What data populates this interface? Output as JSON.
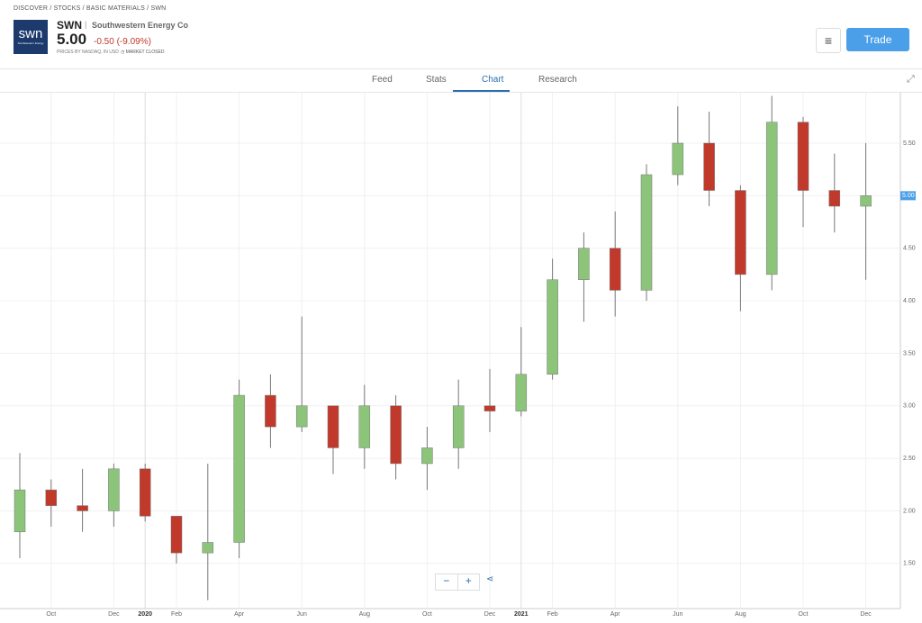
{
  "header": {
    "breadcrumbs": [
      "DISCOVER",
      "STOCKS",
      "BASIC MATERIALS",
      "SWN"
    ],
    "logo": "swn",
    "logo_sub": "Southwestern Energy",
    "ticker": "SWN",
    "company": "Southwestern Energy Co",
    "price": "5.00",
    "change": "-0.50 (-9.09%)",
    "source": "PRICES BY NASDAQ, IN USD",
    "status": "MARKET CLOSED",
    "trade_button": "Trade"
  },
  "tabs": [
    "Feed",
    "Stats",
    "Chart",
    "Research"
  ],
  "active_tab": 2,
  "chart_data": {
    "type": "candlestick",
    "categories": [
      null,
      "Oct",
      null,
      "Dec",
      "2020",
      "Feb",
      null,
      "Apr",
      null,
      "Jun",
      null,
      "Aug",
      null,
      "Oct",
      null,
      "Dec",
      "2021",
      "Feb",
      null,
      "Apr",
      null,
      "Jun",
      null,
      "Aug",
      null,
      "Oct",
      null,
      "Dec"
    ],
    "open": [
      1.8,
      2.2,
      2.05,
      2.0,
      2.4,
      1.95,
      1.6,
      1.7,
      3.1,
      2.8,
      3.0,
      2.6,
      3.0,
      2.45,
      2.6,
      3.0,
      2.95,
      3.3,
      4.2,
      4.5,
      4.1,
      5.2,
      5.5,
      5.05,
      4.25,
      5.7,
      5.05,
      4.9
    ],
    "high": [
      2.55,
      2.3,
      2.4,
      2.45,
      2.45,
      1.95,
      2.45,
      3.25,
      3.3,
      3.85,
      3.0,
      3.2,
      3.1,
      2.8,
      3.25,
      3.35,
      3.75,
      4.4,
      4.65,
      4.85,
      5.3,
      5.85,
      5.8,
      5.1,
      5.95,
      5.75,
      5.4,
      5.5
    ],
    "low": [
      1.55,
      1.85,
      1.8,
      1.85,
      1.9,
      1.5,
      1.15,
      1.55,
      2.6,
      2.75,
      2.35,
      2.4,
      2.3,
      2.2,
      2.4,
      2.75,
      2.9,
      3.25,
      3.8,
      3.85,
      4.0,
      5.1,
      4.9,
      3.9,
      4.1,
      4.7,
      4.65,
      4.2
    ],
    "close": [
      2.2,
      2.05,
      2.0,
      2.4,
      1.95,
      1.6,
      1.7,
      3.1,
      2.8,
      3.0,
      2.6,
      3.0,
      2.45,
      2.6,
      3.0,
      2.95,
      3.3,
      4.2,
      4.5,
      4.1,
      5.2,
      5.5,
      5.05,
      4.25,
      5.7,
      5.05,
      4.9,
      5.0
    ],
    "up_color": "#8cc47a",
    "down_color": "#c0392b",
    "ylim": [
      1.07,
      5.98
    ],
    "yticks": [
      {
        "value": 1.5,
        "label": "1.50"
      },
      {
        "value": 2,
        "label": "2.00"
      },
      {
        "value": 2.5,
        "label": "2.50"
      },
      {
        "value": 3,
        "label": "3.00"
      },
      {
        "value": 3.5,
        "label": "3.50"
      },
      {
        "value": 4,
        "label": "4.00"
      },
      {
        "value": 4.5,
        "label": "4.50"
      },
      {
        "value": 5,
        "label": "5.00"
      },
      {
        "value": 5.5,
        "label": "5.50"
      }
    ],
    "last_price": {
      "value": 5,
      "label": "5.00"
    },
    "grid": true
  }
}
